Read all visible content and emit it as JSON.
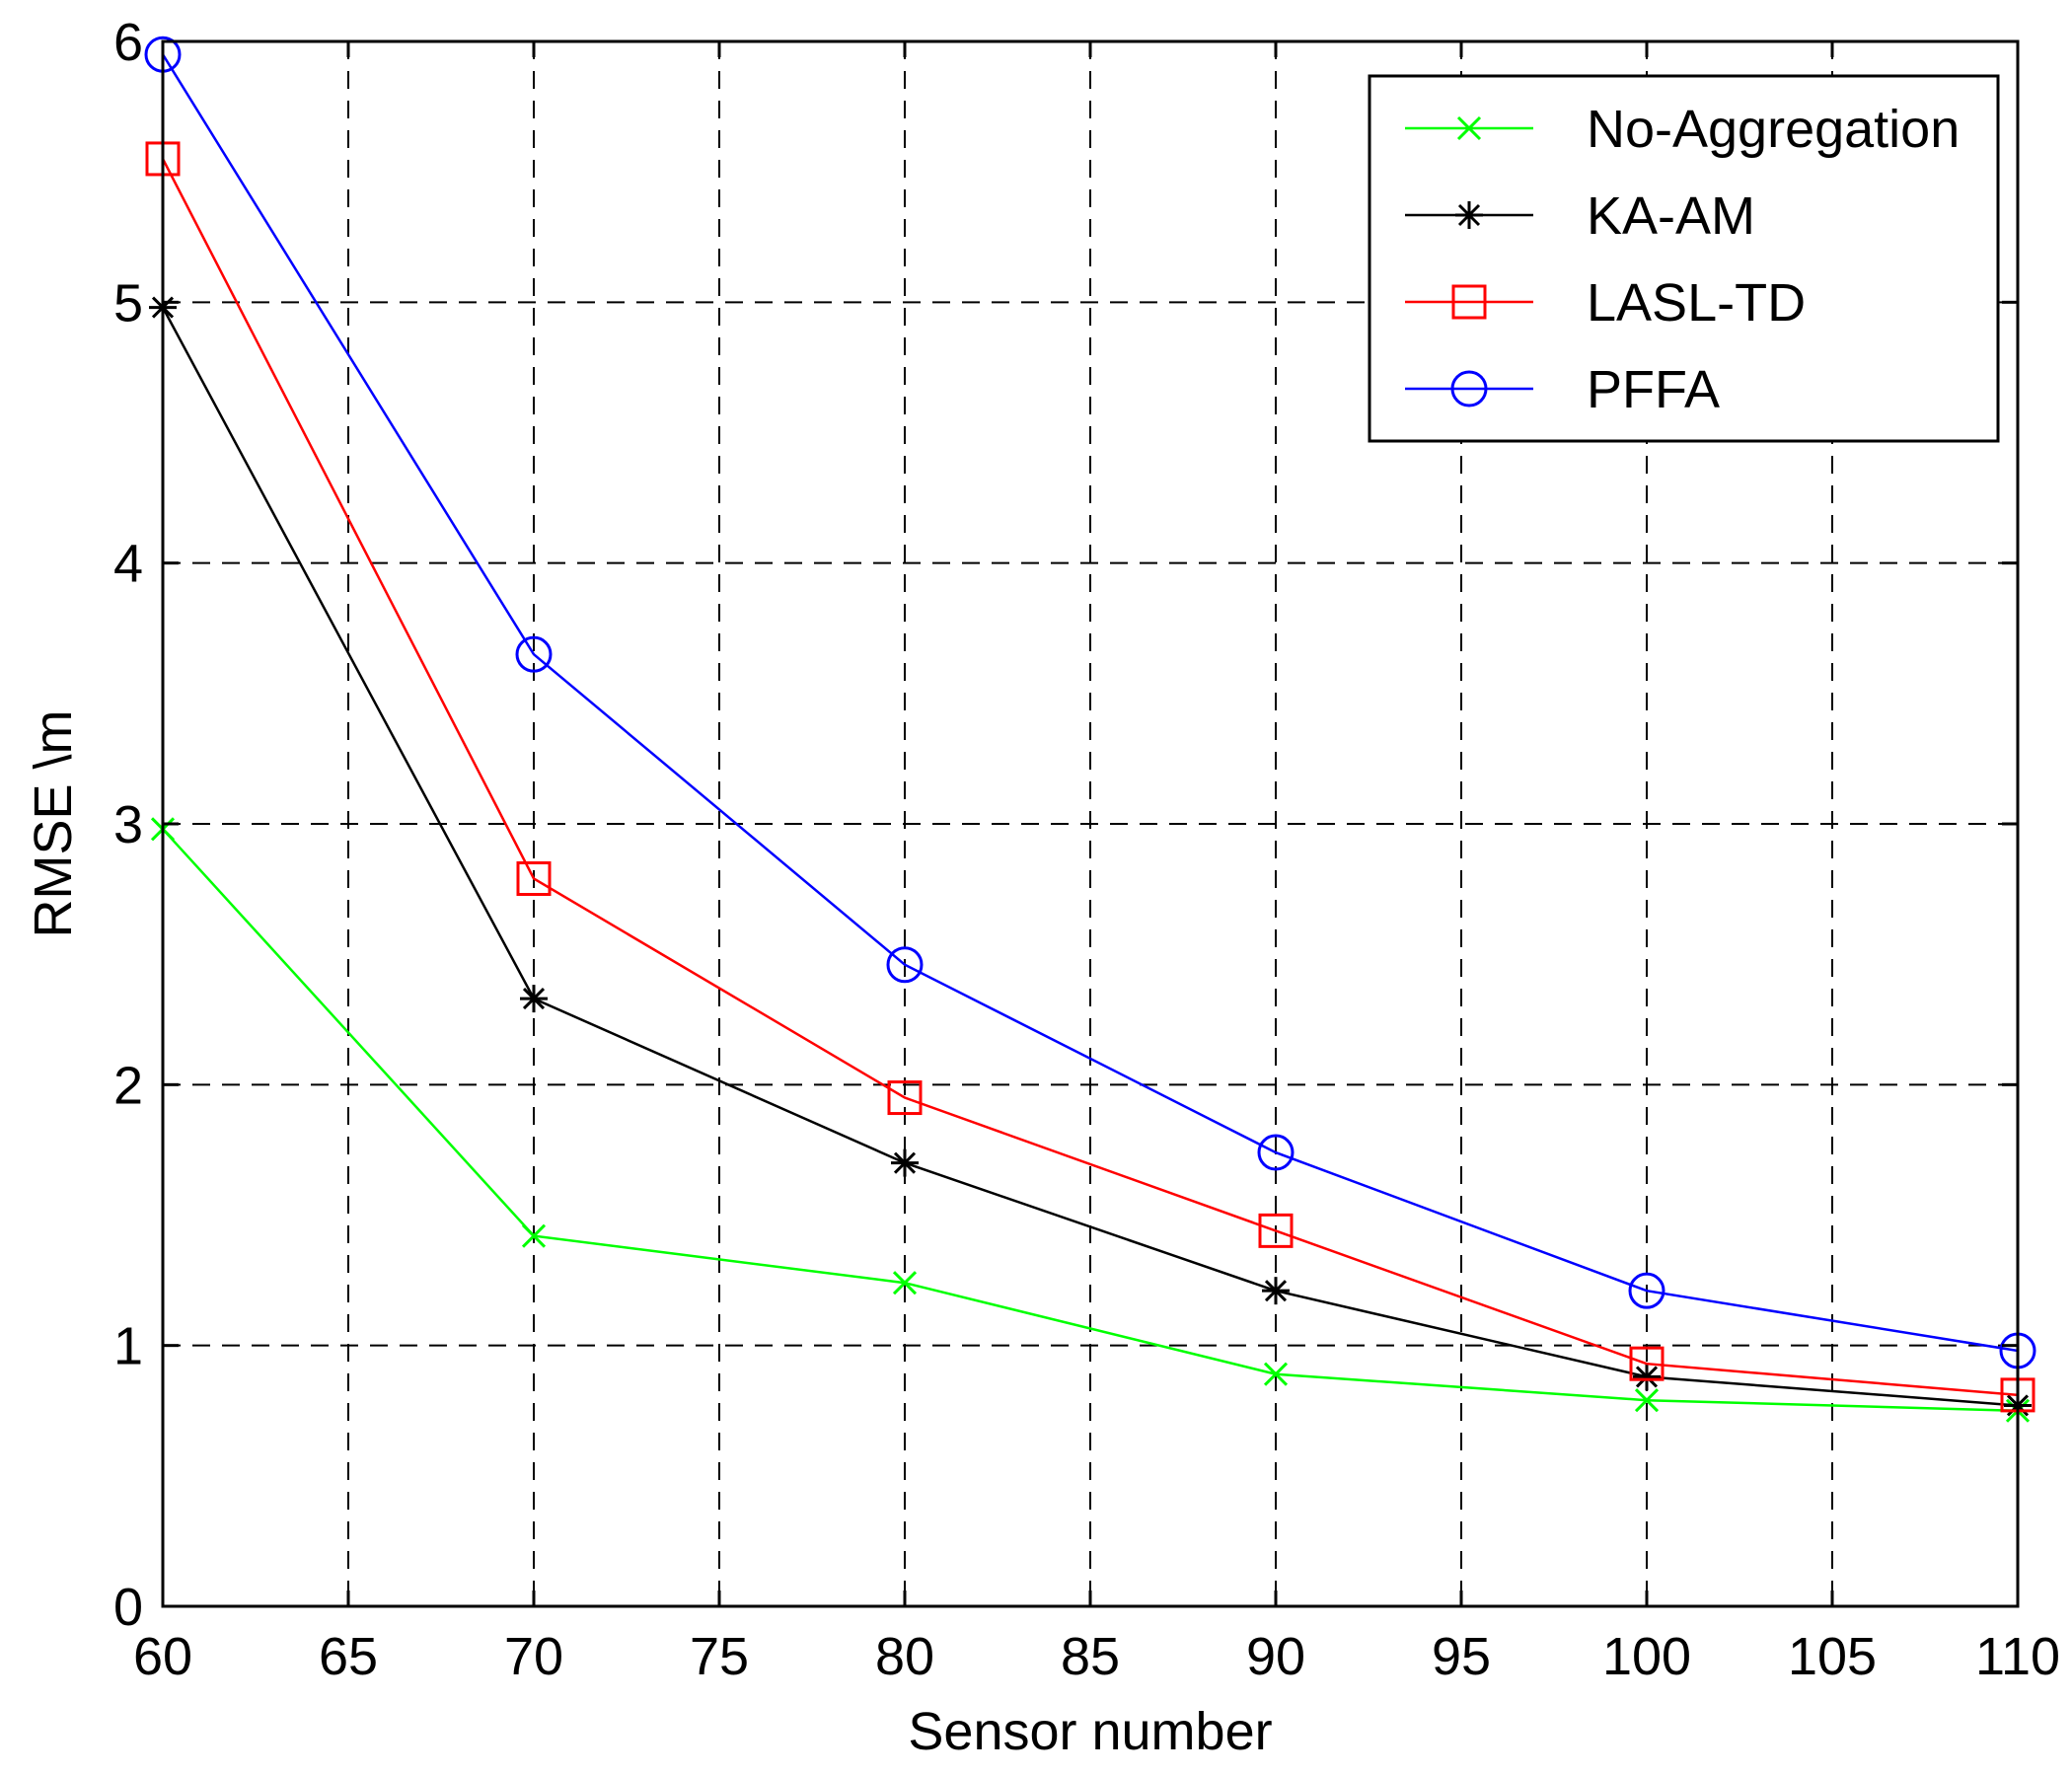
{
  "chart_data": {
    "type": "line",
    "title": "",
    "xlabel": "Sensor number",
    "ylabel": "RMSE \\m",
    "xlim": [
      60,
      110
    ],
    "ylim": [
      0,
      6
    ],
    "xticks": [
      60,
      65,
      70,
      75,
      80,
      85,
      90,
      95,
      100,
      105,
      110
    ],
    "yticks": [
      0,
      1,
      2,
      3,
      4,
      5,
      6
    ],
    "grid": true,
    "legend_position": "top-right",
    "x": [
      60,
      70,
      80,
      90,
      100,
      110
    ],
    "series": [
      {
        "name": "No-Aggregation",
        "color": "#00ff00",
        "marker": "x",
        "values": [
          2.98,
          1.42,
          1.24,
          0.89,
          0.79,
          0.75
        ]
      },
      {
        "name": "KA-AM",
        "color": "#000000",
        "marker": "star",
        "values": [
          4.98,
          2.33,
          1.7,
          1.21,
          0.88,
          0.77
        ]
      },
      {
        "name": "LASL-TD",
        "color": "#ff0000",
        "marker": "square",
        "values": [
          5.55,
          2.79,
          1.95,
          1.44,
          0.93,
          0.81
        ]
      },
      {
        "name": "PFFA",
        "color": "#0000ff",
        "marker": "circle",
        "values": [
          5.95,
          3.65,
          2.46,
          1.74,
          1.21,
          0.98
        ]
      }
    ]
  }
}
